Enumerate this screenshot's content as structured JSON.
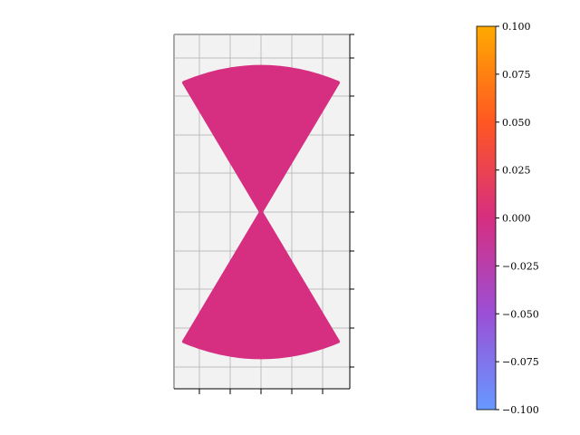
{
  "chart_data": [
    {
      "type": "scatter",
      "title": "",
      "xlabel": "",
      "ylabel": "",
      "description_shape": "double cone (hourglass) point cloud with curved outer caps, viewed in 3D axes",
      "grid": true,
      "axis_tick_labels_visible": false,
      "series": [
        {
          "marker_color": "#d62e80",
          "color_value": 0.0,
          "regions": [
            {
              "part": "upper-cone",
              "apex_xy": [
                0,
                0
              ],
              "cap_y": 1.0,
              "half_width_at_cap": 0.5
            },
            {
              "part": "lower-cone",
              "apex_xy": [
                0,
                0
              ],
              "cap_y": -1.0,
              "half_width_at_cap": 0.5
            }
          ]
        }
      ]
    },
    {
      "type": "heatmap",
      "role": "colorbar",
      "cmap_colors": [
        "#6699ff",
        "#9b4fd6",
        "#d62e80",
        "#ff5722",
        "#ffaa00"
      ],
      "vmin": -0.1,
      "vmax": 0.1,
      "ticks": [
        {
          "value": -0.1,
          "label": "−0.100"
        },
        {
          "value": -0.075,
          "label": "−0.075"
        },
        {
          "value": -0.05,
          "label": "−0.050"
        },
        {
          "value": -0.025,
          "label": "−0.025"
        },
        {
          "value": 0.0,
          "label": "0.000"
        },
        {
          "value": 0.025,
          "label": "0.025"
        },
        {
          "value": 0.05,
          "label": "0.050"
        },
        {
          "value": 0.075,
          "label": "0.075"
        },
        {
          "value": 0.1,
          "label": "0.100"
        }
      ]
    }
  ]
}
